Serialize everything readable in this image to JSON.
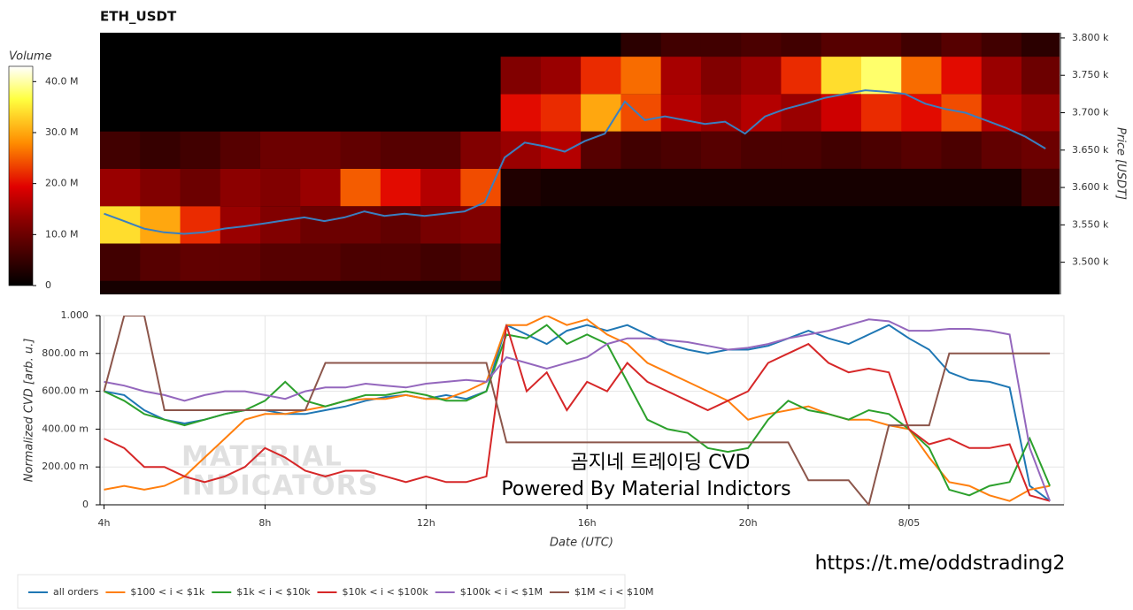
{
  "chart_data": [
    {
      "type": "heatmap",
      "title": "ETH_USDT",
      "colorbar_title": "Volume",
      "y_label": "Price [USDT]",
      "xlim": [
        3.9,
        27.85
      ],
      "ylim": [
        3457,
        3807
      ],
      "zlim": [
        0,
        43
      ],
      "zticks": [
        0,
        {
          "value": 10,
          "label": "10.0 M"
        },
        {
          "value": 20,
          "label": "20.0 M"
        },
        {
          "value": 30,
          "label": "30.0 M"
        },
        {
          "value": 40,
          "label": "40.0 M"
        }
      ],
      "yticks": [
        {
          "value": 3500,
          "label": "3.500 k"
        },
        {
          "value": 3550,
          "label": "3.550 k"
        },
        {
          "value": 3600,
          "label": "3.600 k"
        },
        {
          "value": 3650,
          "label": "3.650 k"
        },
        {
          "value": 3700,
          "label": "3.700 k"
        },
        {
          "value": 3750,
          "label": "3.750 k"
        },
        {
          "value": 3800,
          "label": "3.800 k"
        }
      ],
      "time_bins": [
        3.9,
        4.9,
        5.9,
        6.9,
        7.9,
        8.9,
        9.9,
        10.9,
        11.9,
        12.9,
        13.9,
        14.9,
        15.9,
        16.9,
        17.9,
        18.9,
        19.9,
        20.9,
        21.9,
        22.9,
        23.9,
        24.9,
        25.9,
        26.9,
        27.9
      ],
      "price_bins": [
        3425,
        3475,
        3525,
        3575,
        3625,
        3675,
        3725,
        3775,
        3825
      ],
      "z": [
        [
          2,
          2,
          2,
          2,
          2,
          2,
          2,
          2,
          2,
          2,
          0,
          0,
          0,
          0,
          0,
          0,
          0,
          0,
          0,
          0,
          0,
          0,
          0,
          0
        ],
        [
          6,
          8,
          9,
          9,
          8,
          8,
          7,
          7,
          6,
          7,
          0,
          0,
          0,
          0,
          0,
          0,
          0,
          0,
          0,
          0,
          0,
          0,
          0,
          0
        ],
        [
          34,
          30,
          22,
          14,
          12,
          10,
          10,
          9,
          11,
          12,
          0,
          0,
          0,
          0,
          0,
          0,
          0,
          0,
          0,
          0,
          0,
          0,
          0,
          0
        ],
        [
          14,
          12,
          10,
          13,
          12,
          14,
          25,
          20,
          16,
          24,
          3,
          2,
          2,
          2,
          2,
          2,
          2,
          2,
          2,
          2,
          2,
          2,
          2,
          6
        ],
        [
          6,
          5,
          6,
          8,
          10,
          10,
          9,
          8,
          8,
          12,
          14,
          16,
          8,
          6,
          7,
          8,
          7,
          7,
          6,
          7,
          8,
          7,
          9,
          10
        ],
        [
          0,
          0,
          0,
          0,
          0,
          0,
          0,
          0,
          0,
          0,
          20,
          22,
          30,
          24,
          16,
          14,
          16,
          14,
          18,
          22,
          20,
          24,
          16,
          14
        ],
        [
          0,
          0,
          0,
          0,
          0,
          0,
          0,
          0,
          0,
          0,
          12,
          14,
          22,
          26,
          15,
          12,
          14,
          22,
          34,
          38,
          26,
          20,
          14,
          10
        ],
        [
          0,
          0,
          0,
          0,
          0,
          0,
          0,
          0,
          0,
          0,
          0,
          0,
          0,
          4,
          6,
          6,
          7,
          6,
          8,
          8,
          6,
          8,
          6,
          4
        ]
      ],
      "price_line": {
        "color": "#3a7fc0",
        "x": [
          4,
          4.5,
          5,
          5.5,
          6,
          6.5,
          7,
          7.5,
          8,
          8.5,
          9,
          9.5,
          10,
          10.5,
          11,
          11.5,
          12,
          12.5,
          13,
          13.5,
          14,
          14.5,
          15,
          15.5,
          16,
          16.5,
          17,
          17.5,
          18,
          18.5,
          19,
          19.5,
          20,
          20.5,
          21,
          21.5,
          22,
          22.5,
          23,
          23.5,
          24,
          24.5,
          25,
          25.5,
          26,
          26.5,
          27,
          27.5
        ],
        "values": [
          3565,
          3555,
          3545,
          3540,
          3538,
          3540,
          3545,
          3548,
          3552,
          3556,
          3560,
          3555,
          3560,
          3568,
          3562,
          3565,
          3562,
          3565,
          3568,
          3580,
          3640,
          3660,
          3655,
          3648,
          3662,
          3672,
          3715,
          3690,
          3695,
          3690,
          3685,
          3688,
          3672,
          3695,
          3705,
          3712,
          3720,
          3725,
          3730,
          3728,
          3725,
          3712,
          3705,
          3700,
          3690,
          3680,
          3668,
          3652
        ]
      }
    },
    {
      "type": "line",
      "x_label": "Date (UTC)",
      "y_label": "Normalized CVD [arb. u.]",
      "grid": true,
      "watermark": [
        "MATERIAL",
        "INDICATORS"
      ],
      "annotations": [
        "곰지네 트레이딩 CVD",
        "Powered By Material Indictors",
        "https://t.me/oddstrading2"
      ],
      "xlim": [
        3.9,
        27.85
      ],
      "ylim": [
        0,
        1
      ],
      "xticks": [
        {
          "value": 4,
          "label": "4h"
        },
        {
          "value": 8,
          "label": "8h"
        },
        {
          "value": 12,
          "label": "12h"
        },
        {
          "value": 16,
          "label": "16h"
        },
        {
          "value": 20,
          "label": "20h"
        },
        {
          "value": 24,
          "label": "8/05"
        }
      ],
      "yticks": [
        0,
        {
          "value": 0.2,
          "label": "200.00 m"
        },
        {
          "value": 0.4,
          "label": "400.00 m"
        },
        {
          "value": 0.6,
          "label": "600.00 m"
        },
        {
          "value": 0.8,
          "label": "800.00 m"
        },
        {
          "value": 1,
          "label": "1.000"
        }
      ],
      "x": [
        4,
        4.5,
        5,
        5.5,
        6,
        6.5,
        7,
        7.5,
        8,
        8.5,
        9,
        9.5,
        10,
        10.5,
        11,
        11.5,
        12,
        12.5,
        13,
        13.5,
        14,
        14.5,
        15,
        15.5,
        16,
        16.5,
        17,
        17.5,
        18,
        18.5,
        19,
        19.5,
        20,
        20.5,
        21,
        21.5,
        22,
        22.5,
        23,
        23.5,
        24,
        24.5,
        25,
        25.5,
        26,
        26.5,
        27,
        27.5
      ],
      "series": [
        {
          "name": "all orders",
          "color": "#1f77b4",
          "values": [
            0.6,
            0.58,
            0.5,
            0.45,
            0.43,
            0.45,
            0.48,
            0.5,
            0.5,
            0.48,
            0.48,
            0.5,
            0.52,
            0.55,
            0.57,
            0.58,
            0.56,
            0.58,
            0.56,
            0.6,
            0.95,
            0.9,
            0.85,
            0.92,
            0.95,
            0.92,
            0.95,
            0.9,
            0.85,
            0.82,
            0.8,
            0.82,
            0.82,
            0.84,
            0.88,
            0.92,
            0.88,
            0.85,
            0.9,
            0.95,
            0.88,
            0.82,
            0.7,
            0.66,
            0.65,
            0.62,
            0.1,
            0.02
          ]
        },
        {
          "name": "$100 < i < $1k",
          "color": "#ff7f0e",
          "values": [
            0.08,
            0.1,
            0.08,
            0.1,
            0.15,
            0.25,
            0.35,
            0.45,
            0.48,
            0.48,
            0.5,
            0.52,
            0.55,
            0.56,
            0.56,
            0.58,
            0.56,
            0.56,
            0.6,
            0.65,
            0.95,
            0.95,
            1.0,
            0.95,
            0.98,
            0.9,
            0.85,
            0.75,
            0.7,
            0.65,
            0.6,
            0.55,
            0.45,
            0.48,
            0.5,
            0.52,
            0.48,
            0.45,
            0.45,
            0.42,
            0.4,
            0.25,
            0.12,
            0.1,
            0.05,
            0.02,
            0.08,
            0.1
          ]
        },
        {
          "name": "$1k < i < $10k",
          "color": "#2ca02c",
          "values": [
            0.6,
            0.55,
            0.48,
            0.45,
            0.42,
            0.45,
            0.48,
            0.5,
            0.55,
            0.65,
            0.55,
            0.52,
            0.55,
            0.58,
            0.58,
            0.6,
            0.58,
            0.55,
            0.55,
            0.6,
            0.9,
            0.88,
            0.95,
            0.85,
            0.9,
            0.85,
            0.65,
            0.45,
            0.4,
            0.38,
            0.3,
            0.28,
            0.3,
            0.45,
            0.55,
            0.5,
            0.48,
            0.45,
            0.5,
            0.48,
            0.4,
            0.3,
            0.08,
            0.05,
            0.1,
            0.12,
            0.35,
            0.1
          ]
        },
        {
          "name": "$10k < i < $100k",
          "color": "#d62728",
          "values": [
            0.35,
            0.3,
            0.2,
            0.2,
            0.15,
            0.12,
            0.15,
            0.2,
            0.3,
            0.25,
            0.18,
            0.15,
            0.18,
            0.18,
            0.15,
            0.12,
            0.15,
            0.12,
            0.12,
            0.15,
            0.95,
            0.6,
            0.7,
            0.5,
            0.65,
            0.6,
            0.75,
            0.65,
            0.6,
            0.55,
            0.5,
            0.55,
            0.6,
            0.75,
            0.8,
            0.85,
            0.75,
            0.7,
            0.72,
            0.7,
            0.4,
            0.32,
            0.35,
            0.3,
            0.3,
            0.32,
            0.05,
            0.02
          ]
        },
        {
          "name": "$100k < i < $1M",
          "color": "#9467bd",
          "values": [
            0.65,
            0.63,
            0.6,
            0.58,
            0.55,
            0.58,
            0.6,
            0.6,
            0.58,
            0.56,
            0.6,
            0.62,
            0.62,
            0.64,
            0.63,
            0.62,
            0.64,
            0.65,
            0.66,
            0.65,
            0.78,
            0.75,
            0.72,
            0.75,
            0.78,
            0.85,
            0.88,
            0.88,
            0.87,
            0.86,
            0.84,
            0.82,
            0.83,
            0.85,
            0.88,
            0.9,
            0.92,
            0.95,
            0.98,
            0.97,
            0.92,
            0.92,
            0.93,
            0.93,
            0.92,
            0.9,
            0.3,
            0.02
          ]
        },
        {
          "name": "$1M < i < $10M",
          "color": "#8c564b",
          "values": [
            0.6,
            1.0,
            1.0,
            0.5,
            0.5,
            0.5,
            0.5,
            0.5,
            0.5,
            0.5,
            0.5,
            0.75,
            0.75,
            0.75,
            0.75,
            0.75,
            0.75,
            0.75,
            0.75,
            0.75,
            0.33,
            0.33,
            0.33,
            0.33,
            0.33,
            0.33,
            0.33,
            0.33,
            0.33,
            0.33,
            0.33,
            0.33,
            0.33,
            0.33,
            0.33,
            0.13,
            0.13,
            0.13,
            0.0,
            0.42,
            0.42,
            0.42,
            0.8,
            0.8,
            0.8,
            0.8,
            0.8,
            0.8
          ]
        }
      ]
    }
  ]
}
